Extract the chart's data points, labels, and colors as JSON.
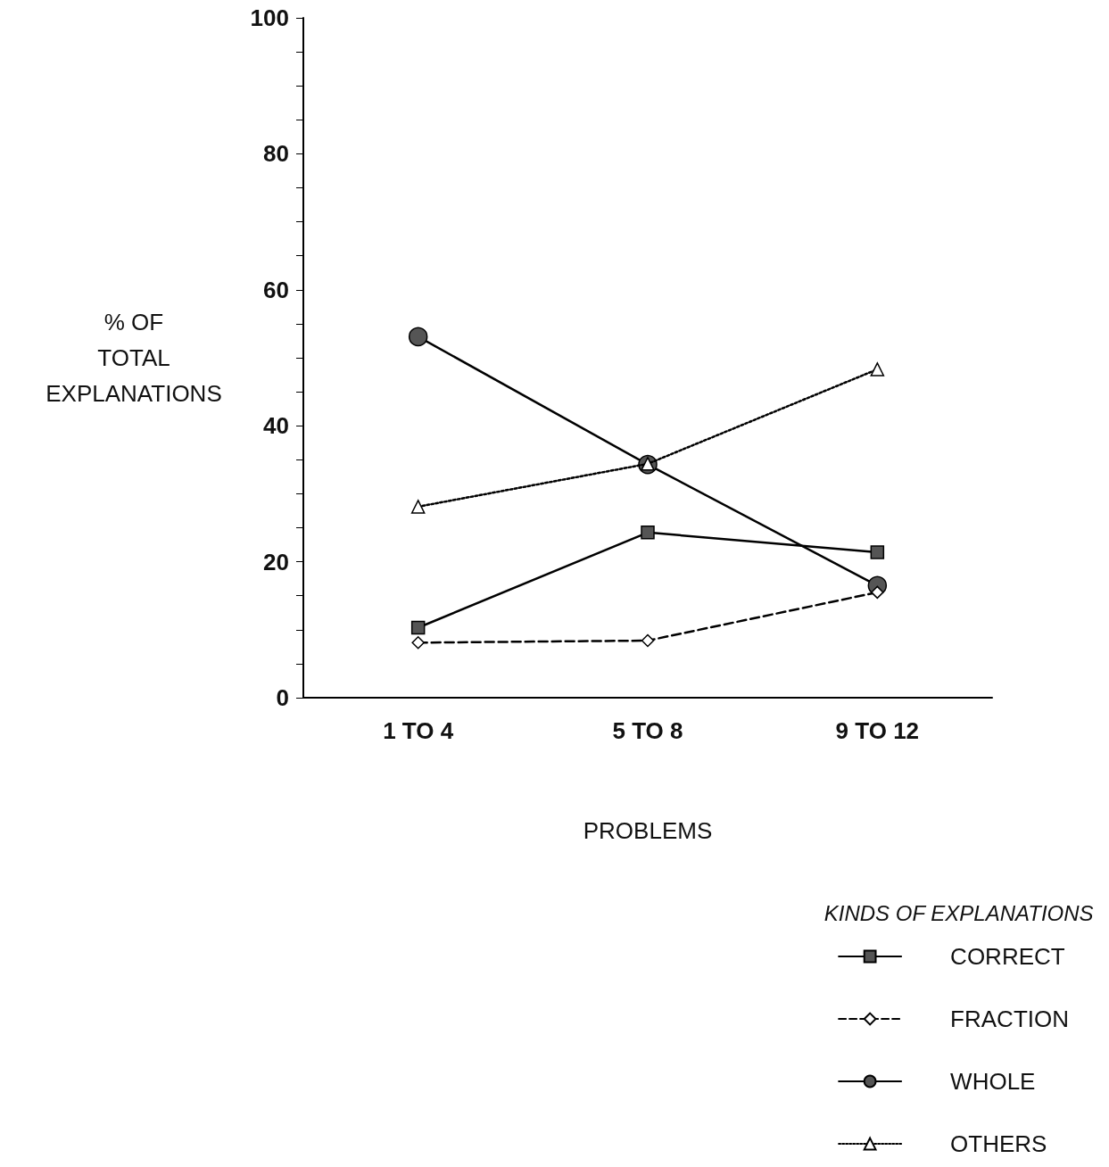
{
  "chart_data": {
    "type": "line",
    "xlabel": "PROBLEMS",
    "ylabel": "% OF\nTOTAL\nEXPLANATIONS",
    "legend_title": "KINDS OF EXPLANATIONS",
    "categories": [
      "1 TO 4",
      "5 TO 8",
      "9 TO 12"
    ],
    "series": [
      {
        "name": "CORRECT",
        "color": "#000000",
        "marker": "square",
        "line_style": "solid",
        "values": [
          10.3,
          24.3,
          21.4
        ]
      },
      {
        "name": "FRACTION",
        "color": "#000000",
        "marker": "diamond",
        "line_style": "dashed",
        "values": [
          8.1,
          8.4,
          15.5
        ]
      },
      {
        "name": "WHOLE",
        "color": "#000000",
        "marker": "circle",
        "line_style": "solid",
        "values": [
          53.1,
          34.3,
          16.5
        ]
      },
      {
        "name": "OTHERS",
        "color": "#000000",
        "marker": "triangle",
        "line_style": "dotted",
        "values": [
          28.1,
          34.4,
          48.3
        ]
      }
    ],
    "ylim": [
      0,
      100
    ],
    "yticks": [
      0,
      {
        "value": 5,
        "label": null
      },
      {
        "value": 10,
        "label": null
      },
      {
        "value": 15,
        "label": null
      },
      20,
      {
        "value": 25,
        "label": null
      },
      {
        "value": 30,
        "label": null
      },
      {
        "value": 35,
        "label": null
      },
      40,
      {
        "value": 45,
        "label": null
      },
      {
        "value": 50,
        "label": null
      },
      {
        "value": 55,
        "label": null
      },
      60,
      {
        "value": 65,
        "label": null
      },
      {
        "value": 70,
        "label": null
      },
      {
        "value": 75,
        "label": null
      },
      80,
      {
        "value": 85,
        "label": null
      },
      {
        "value": 90,
        "label": null
      },
      {
        "value": 95,
        "label": null
      },
      100
    ],
    "grid": false,
    "legend": "bottom right"
  }
}
